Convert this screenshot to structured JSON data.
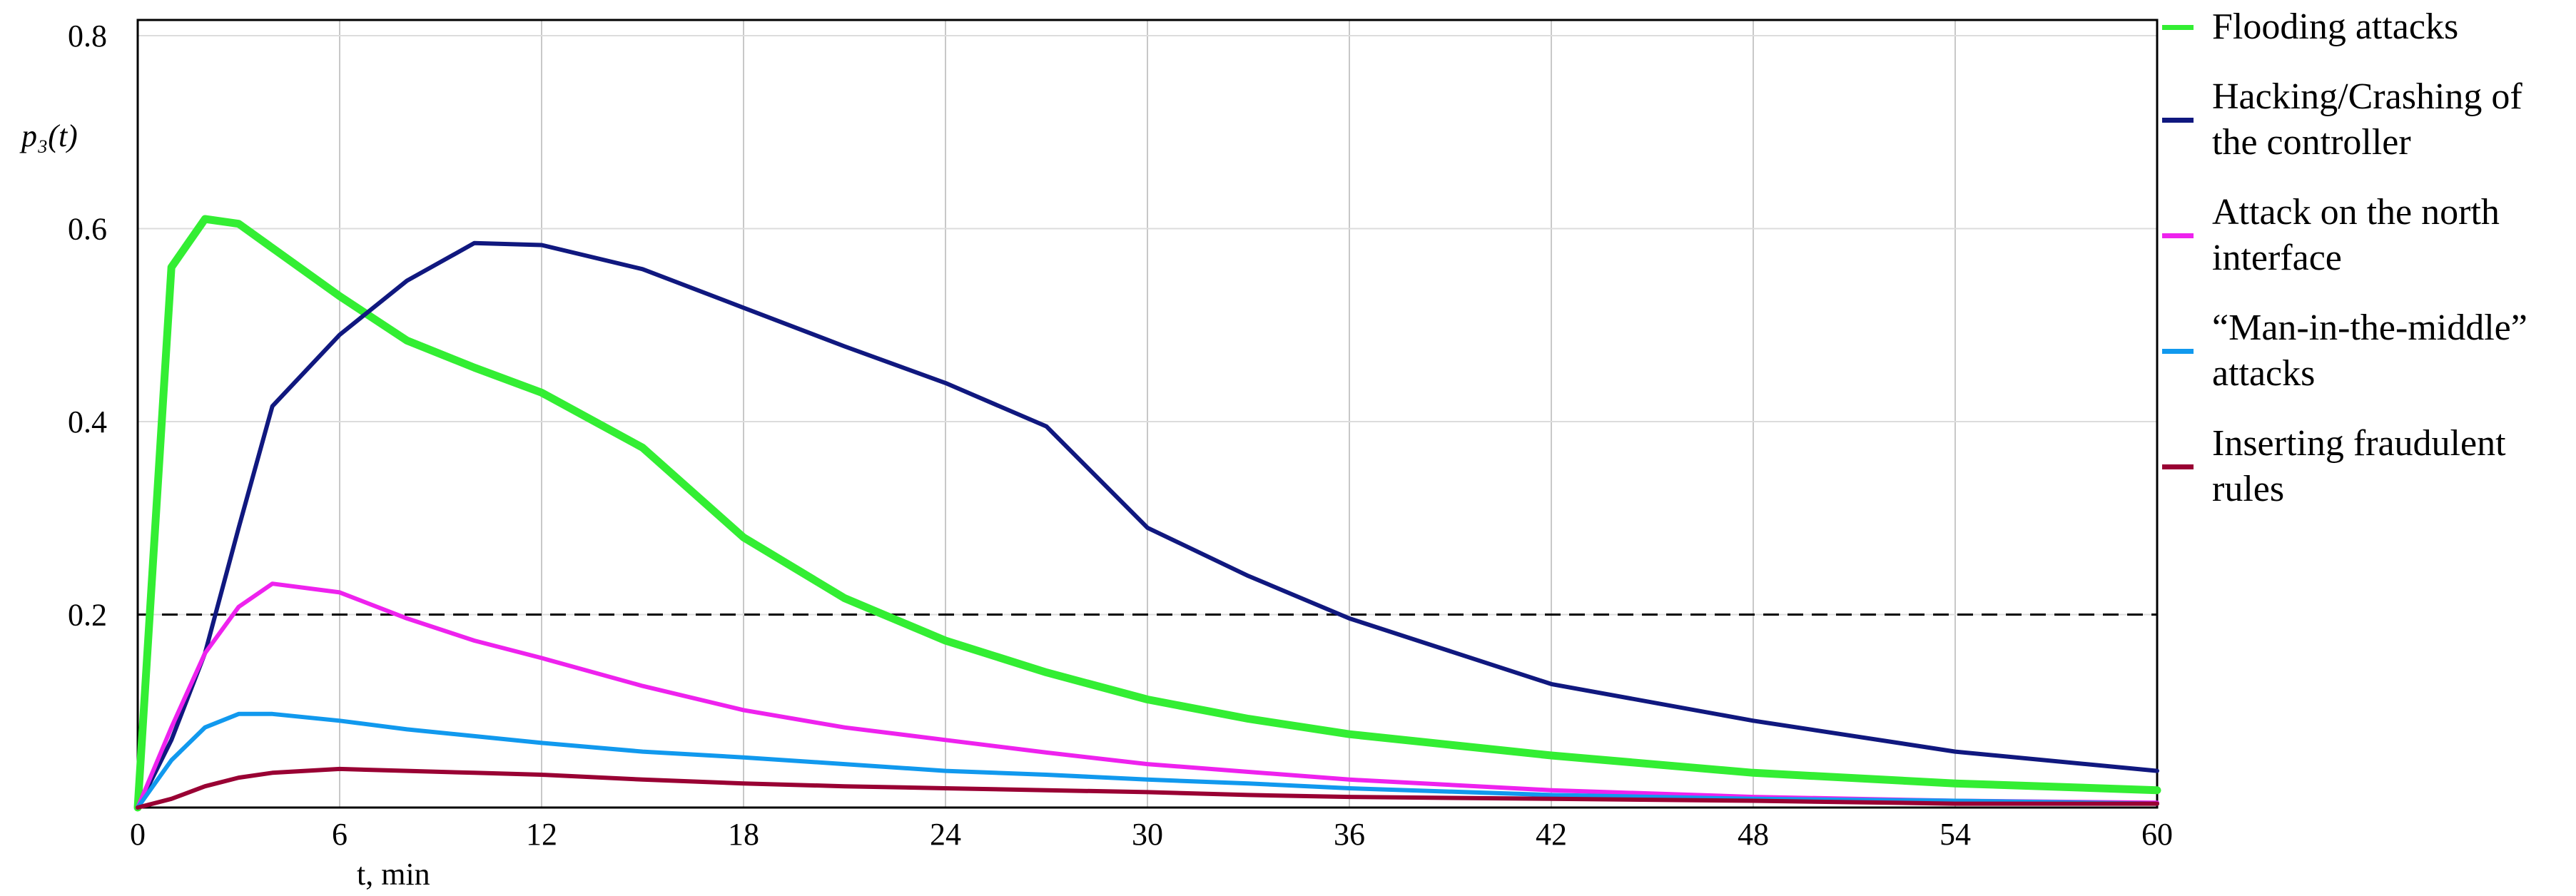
{
  "chart_data": {
    "type": "line",
    "y_label": "p₃(t)",
    "x_label": "t, min",
    "x": [
      0,
      1,
      2,
      3,
      4,
      6,
      8,
      10,
      12,
      15,
      18,
      21,
      24,
      27,
      30,
      33,
      36,
      42,
      48,
      54,
      60
    ],
    "series": [
      {
        "name": "Flooding attacks",
        "color": "#33ee33",
        "values": [
          0,
          0.56,
          0.61,
          0.605,
          0.58,
          0.53,
          0.484,
          0.456,
          0.43,
          0.373,
          0.28,
          0.217,
          0.173,
          0.14,
          0.112,
          0.092,
          0.076,
          0.054,
          0.036,
          0.025,
          0.018
        ]
      },
      {
        "name": "Hacking/Crashing of the controller",
        "color": "#10187f",
        "values": [
          0,
          0.07,
          0.16,
          0.29,
          0.416,
          0.49,
          0.546,
          0.585,
          0.583,
          0.558,
          0.518,
          0.478,
          0.44,
          0.395,
          0.29,
          0.24,
          0.196,
          0.128,
          0.09,
          0.058,
          0.038
        ]
      },
      {
        "name": "Attack on the north interface",
        "color": "#ee22ee",
        "values": [
          0,
          0.083,
          0.16,
          0.208,
          0.232,
          0.223,
          0.196,
          0.173,
          0.155,
          0.126,
          0.101,
          0.083,
          0.07,
          0.057,
          0.045,
          0.037,
          0.029,
          0.018,
          0.011,
          0.007,
          0.005
        ]
      },
      {
        "name": "“Man-in-the-middle” attacks",
        "color": "#1199ee",
        "values": [
          0,
          0.049,
          0.083,
          0.097,
          0.097,
          0.09,
          0.081,
          0.074,
          0.067,
          0.058,
          0.052,
          0.045,
          0.038,
          0.034,
          0.029,
          0.025,
          0.02,
          0.013,
          0.009,
          0.007,
          0.004
        ]
      },
      {
        "name": "Inserting fraudulent rules",
        "color": "#990033",
        "values": [
          0,
          0.009,
          0.022,
          0.031,
          0.036,
          0.04,
          0.038,
          0.036,
          0.034,
          0.029,
          0.025,
          0.022,
          0.02,
          0.018,
          0.016,
          0.013,
          0.011,
          0.009,
          0.007,
          0.004,
          0.004
        ]
      }
    ],
    "xlim": [
      0,
      60
    ],
    "xticks": [
      0,
      6,
      12,
      18,
      24,
      30,
      36,
      42,
      48,
      54,
      60
    ],
    "ylim": [
      0,
      0.8
    ],
    "yticks": [
      0.2,
      0.4,
      0.6,
      0.8
    ],
    "hline": 0.2,
    "grid": true
  }
}
